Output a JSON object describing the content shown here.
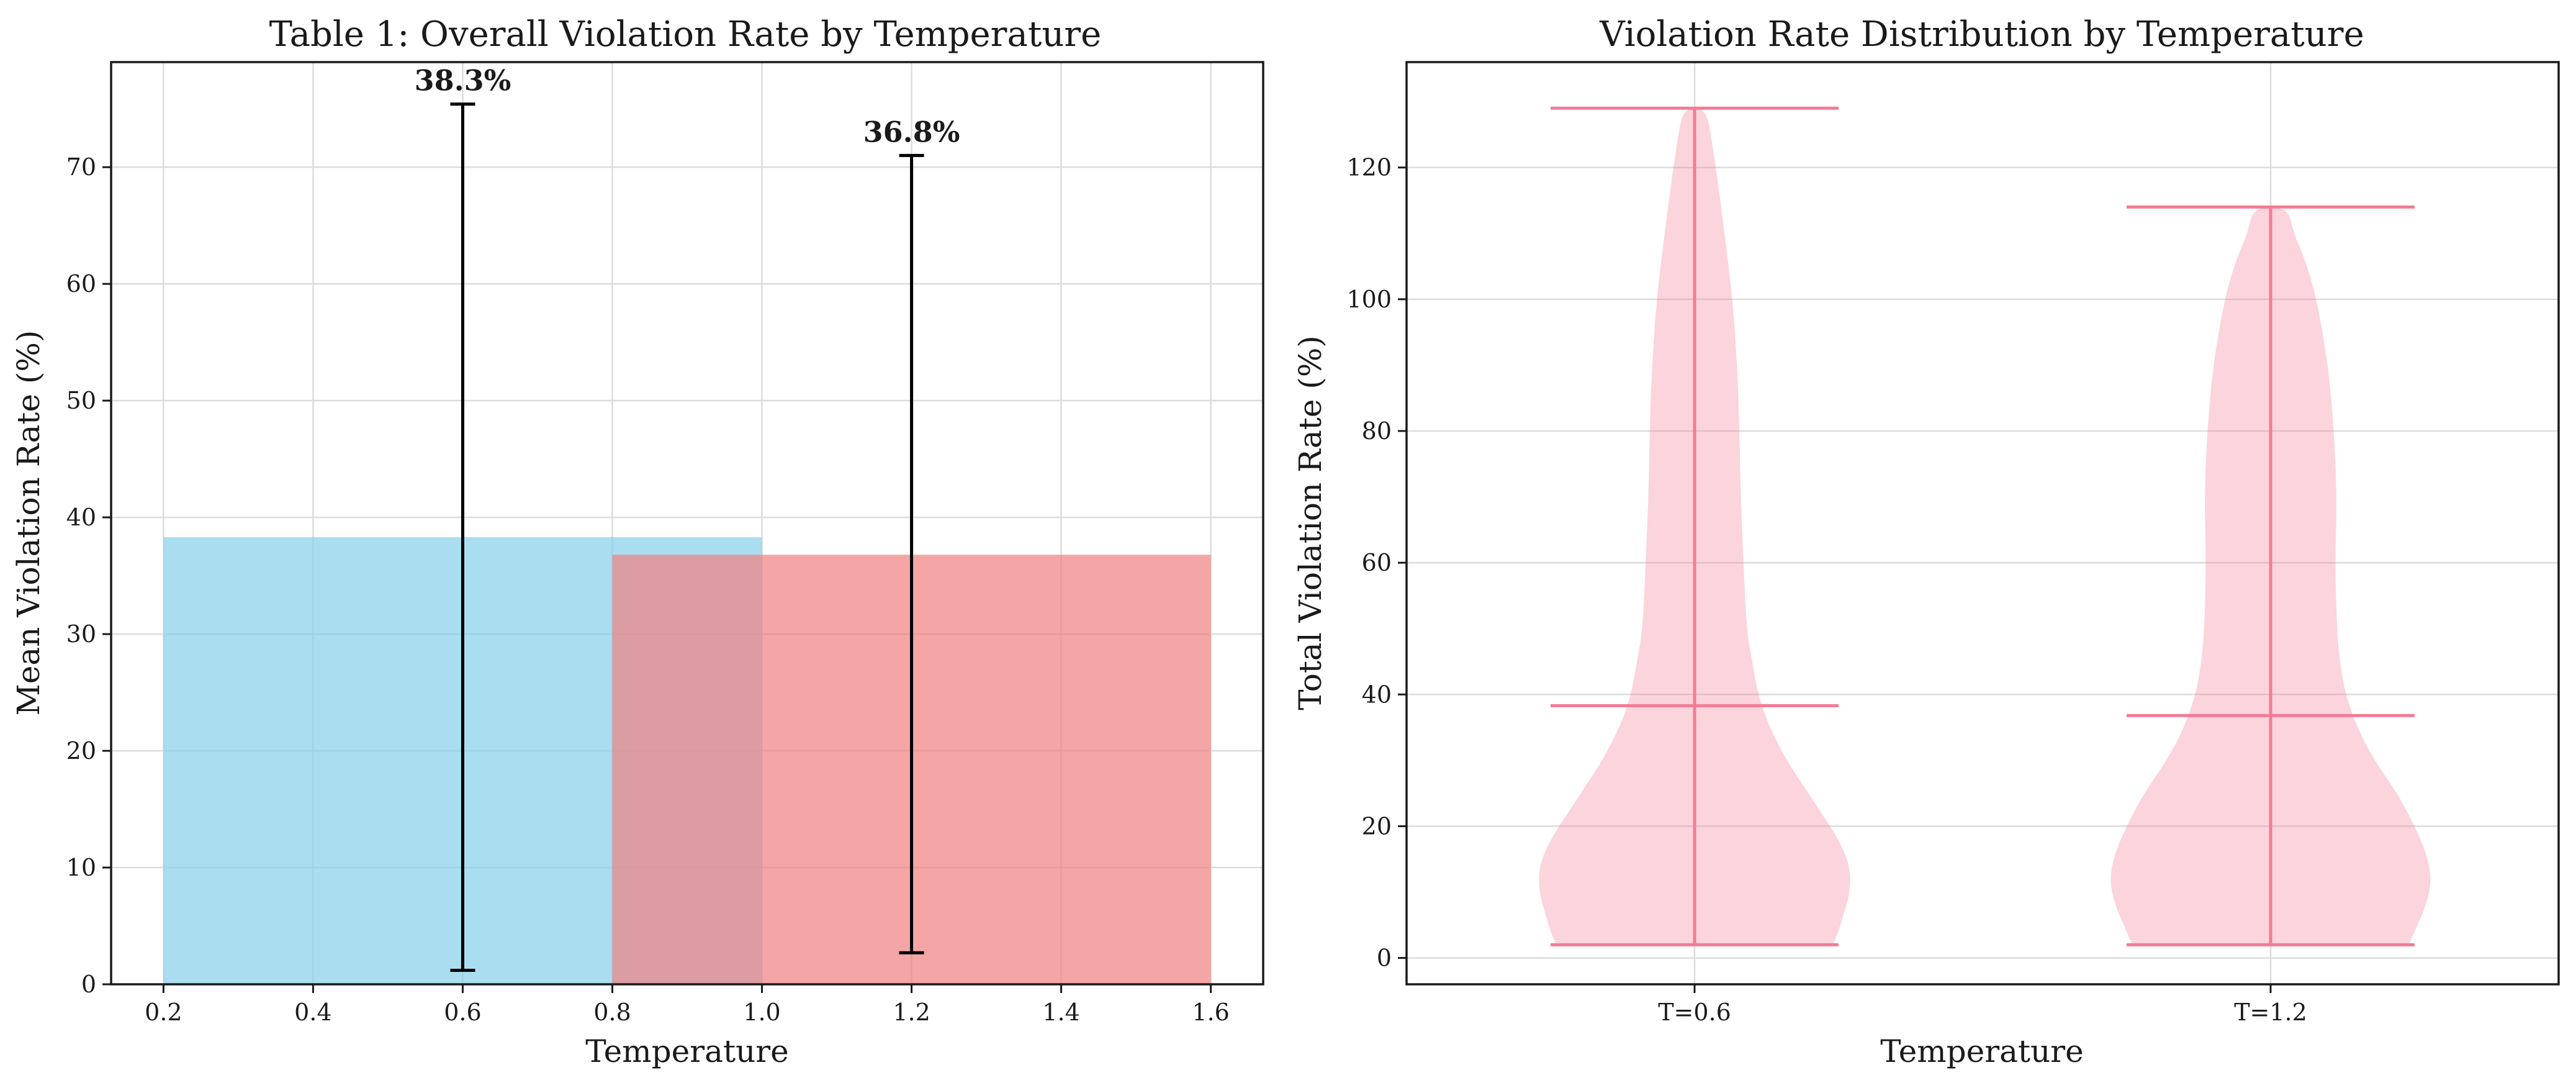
{
  "chart_data": [
    {
      "type": "bar",
      "title": "Table 1: Overall Violation Rate by Temperature",
      "xlabel": "Temperature",
      "ylabel": "Mean Violation Rate (%)",
      "xlim": [
        0.13,
        1.67
      ],
      "ylim": [
        0,
        79
      ],
      "xticks": [
        0.2,
        0.4,
        0.6,
        0.8,
        1.0,
        1.2,
        1.4,
        1.6
      ],
      "xtick_labels": [
        "0.2",
        "0.4",
        "0.6",
        "0.8",
        "1.0",
        "1.2",
        "1.4",
        "1.6"
      ],
      "yticks": [
        0,
        10,
        20,
        30,
        40,
        50,
        60,
        70
      ],
      "ytick_labels": [
        "0",
        "10",
        "20",
        "30",
        "40",
        "50",
        "60",
        "70"
      ],
      "grid": true,
      "bar_width": 0.8,
      "bars": [
        {
          "x": 0.6,
          "value": 38.3,
          "error_low": 1.2,
          "error_high": 75.4,
          "label": "38.3%",
          "color": "#87ceeb"
        },
        {
          "x": 1.2,
          "value": 36.8,
          "error_low": 2.7,
          "error_high": 71.0,
          "label": "36.8%",
          "color": "#f08080"
        }
      ]
    },
    {
      "type": "violin",
      "title": "Violation Rate Distribution by Temperature",
      "xlabel": "Temperature",
      "ylabel": "Total Violation Rate (%)",
      "ylim": [
        -4,
        136
      ],
      "yticks": [
        0,
        20,
        40,
        60,
        80,
        100,
        120
      ],
      "ytick_labels": [
        "0",
        "20",
        "40",
        "60",
        "80",
        "100",
        "120"
      ],
      "grid": true,
      "color": "#f37b95",
      "categories": [
        "T=0.6",
        "T=1.2"
      ],
      "violins": [
        {
          "category": "T=0.6",
          "min": 2,
          "max": 129,
          "mean": 38.3,
          "profile": [
            [
              2,
              0.24
            ],
            [
              4,
              0.25
            ],
            [
              7,
              0.26
            ],
            [
              10,
              0.27
            ],
            [
              14,
              0.27
            ],
            [
              18,
              0.25
            ],
            [
              22,
              0.22
            ],
            [
              26,
              0.19
            ],
            [
              30,
              0.16
            ],
            [
              35,
              0.13
            ],
            [
              40,
              0.11
            ],
            [
              45,
              0.1
            ],
            [
              50,
              0.09
            ],
            [
              60,
              0.085
            ],
            [
              70,
              0.08
            ],
            [
              80,
              0.078
            ],
            [
              90,
              0.074
            ],
            [
              100,
              0.066
            ],
            [
              110,
              0.052
            ],
            [
              118,
              0.04
            ],
            [
              124,
              0.03
            ],
            [
              129,
              0.02
            ]
          ]
        },
        {
          "category": "T=1.2",
          "min": 2,
          "max": 114,
          "mean": 36.8,
          "profile": [
            [
              2,
              0.24
            ],
            [
              5,
              0.255
            ],
            [
              8,
              0.27
            ],
            [
              12,
              0.28
            ],
            [
              16,
              0.27
            ],
            [
              20,
              0.25
            ],
            [
              25,
              0.22
            ],
            [
              30,
              0.18
            ],
            [
              35,
              0.15
            ],
            [
              40,
              0.13
            ],
            [
              45,
              0.12
            ],
            [
              50,
              0.115
            ],
            [
              60,
              0.112
            ],
            [
              70,
              0.115
            ],
            [
              80,
              0.11
            ],
            [
              90,
              0.1
            ],
            [
              100,
              0.08
            ],
            [
              106,
              0.06
            ],
            [
              110,
              0.04
            ],
            [
              114,
              0.03
            ]
          ]
        }
      ]
    }
  ]
}
